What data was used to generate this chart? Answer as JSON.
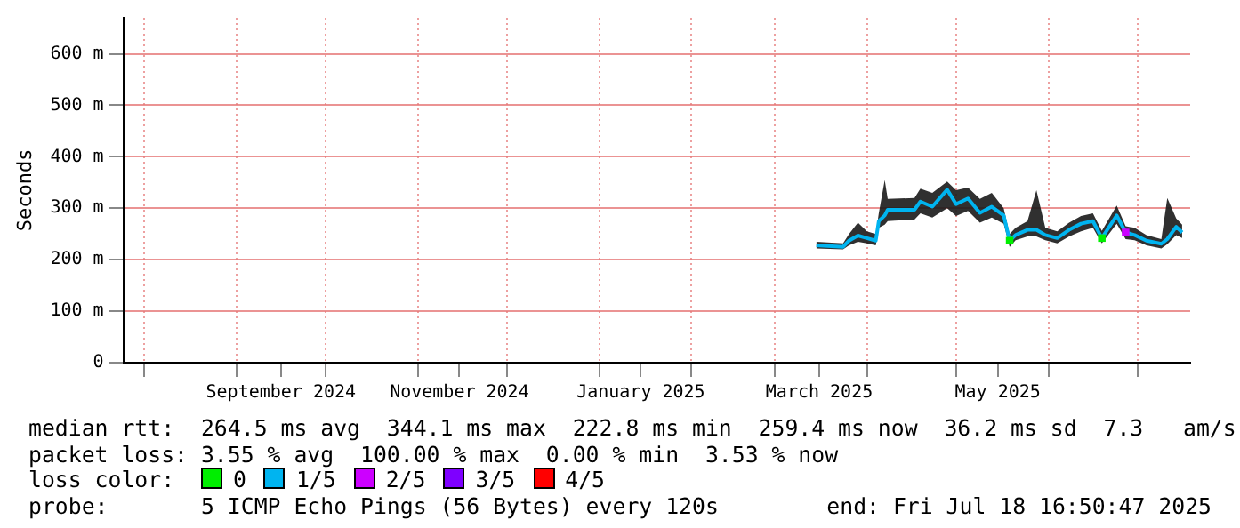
{
  "chart_data": {
    "type": "line",
    "ylabel": "Seconds",
    "xlim": [
      "2024-07-25",
      "2025-07-18T16:50"
    ],
    "xticks": [
      {
        "value": "2024-08-01",
        "label": null
      },
      {
        "value": "2024-09-01",
        "label": null
      },
      {
        "value": "2024-09-16",
        "label": "September 2024"
      },
      {
        "value": "2024-10-01",
        "label": null
      },
      {
        "value": "2024-11-01",
        "label": null
      },
      {
        "value": "2024-11-15",
        "label": "November 2024"
      },
      {
        "value": "2024-12-01",
        "label": null
      },
      {
        "value": "2025-01-01",
        "label": null
      },
      {
        "value": "2025-01-15",
        "label": "January 2025"
      },
      {
        "value": "2025-02-01",
        "label": null
      },
      {
        "value": "2025-03-01",
        "label": null
      },
      {
        "value": "2025-03-16",
        "label": "March 2025"
      },
      {
        "value": "2025-04-01",
        "label": null
      },
      {
        "value": "2025-05-01",
        "label": null
      },
      {
        "value": "2025-05-15",
        "label": "May 2025"
      },
      {
        "value": "2025-06-01",
        "label": null
      },
      {
        "value": "2025-07-01",
        "label": null
      }
    ],
    "ylim": [
      0,
      670
    ],
    "yticks": [
      0,
      {
        "value": 100,
        "label": "100 m"
      },
      {
        "value": 200,
        "label": "200 m"
      },
      {
        "value": 300,
        "label": "300 m"
      },
      {
        "value": 400,
        "label": "400 m"
      },
      {
        "value": 500,
        "label": "500 m"
      },
      {
        "value": 600,
        "label": "600 m"
      }
    ],
    "grid": true,
    "legend": "bottom",
    "legend_title": "loss color:",
    "series": [
      {
        "name": "0",
        "type": "scatter",
        "marker": "square",
        "color": "#00ee00",
        "x": [
          "2025-05-19",
          "2025-06-19"
        ],
        "values": [
          237,
          242
        ]
      },
      {
        "name": "1/5",
        "color": "#00b4f0",
        "x": [
          "2025-03-15",
          "2025-03-24",
          "2025-03-26",
          "2025-03-29",
          "2025-04-01",
          "2025-04-04",
          "2025-04-05",
          "2025-04-07",
          "2025-04-08",
          "2025-04-17",
          "2025-04-19",
          "2025-04-23",
          "2025-04-28",
          "2025-05-01",
          "2025-05-05",
          "2025-05-09",
          "2025-05-13",
          "2025-05-17",
          "2025-05-19",
          "2025-05-21",
          "2025-05-25",
          "2025-05-28",
          "2025-05-31",
          "2025-06-04",
          "2025-06-08",
          "2025-06-12",
          "2025-06-16",
          "2025-06-19",
          "2025-06-24",
          "2025-06-27",
          "2025-06-30",
          "2025-07-04",
          "2025-07-09",
          "2025-07-11",
          "2025-07-14",
          "2025-07-16"
        ],
        "values": [
          228,
          225,
          237,
          247,
          242,
          237,
          275,
          286,
          297,
          297,
          313,
          303,
          336,
          308,
          319,
          291,
          303,
          286,
          237,
          248,
          258,
          258,
          248,
          242,
          258,
          270,
          275,
          242,
          286,
          253,
          248,
          237,
          231,
          240,
          264,
          253
        ],
        "lower": [
          222,
          220,
          228,
          235,
          232,
          228,
          262,
          268,
          275,
          278,
          290,
          282,
          300,
          285,
          295,
          272,
          282,
          270,
          225,
          238,
          245,
          245,
          238,
          232,
          245,
          255,
          262,
          232,
          270,
          240,
          238,
          228,
          222,
          230,
          248,
          242
        ],
        "upper": [
          235,
          232,
          250,
          272,
          255,
          250,
          290,
          355,
          318,
          320,
          338,
          330,
          352,
          335,
          340,
          318,
          330,
          300,
          250,
          262,
          275,
          335,
          262,
          255,
          272,
          285,
          290,
          256,
          305,
          265,
          262,
          248,
          240,
          320,
          280,
          268
        ]
      },
      {
        "name": "2/5",
        "type": "scatter",
        "marker": "square",
        "color": "#cc00ff",
        "x": [
          "2025-06-27"
        ],
        "values": [
          253
        ]
      },
      {
        "name": "3/5",
        "color": "#7e00ff"
      },
      {
        "name": "4/5",
        "color": "#ff0000"
      }
    ],
    "annotations": [
      "median rtt:  264.5 ms avg  344.1 ms max  222.8 ms min  259.4 ms now  36.2 ms sd  7.3   am/s",
      "packet loss: 3.55 % avg  100.00 % max  0.00 % min  3.53 % now",
      "probe:       5 ICMP Echo Pings (56 Bytes) every 120s",
      "end: Fri Jul 18 16:50:47 2025"
    ]
  }
}
